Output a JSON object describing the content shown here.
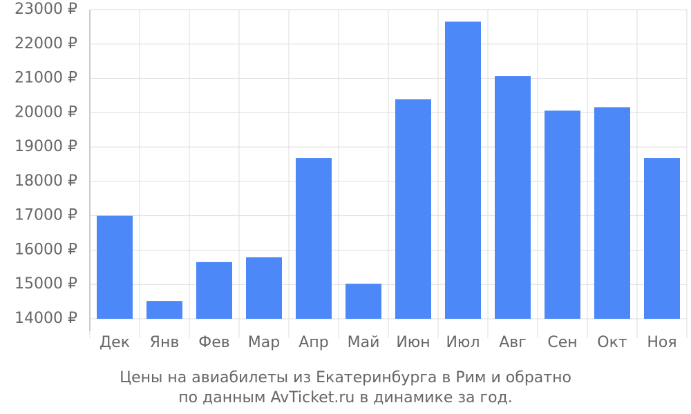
{
  "chart_data": {
    "type": "bar",
    "title": "Цены на авиабилеты из Екатеринбурга в Рим и обратно",
    "subtitle": "по данным AvTicket.ru в динамике за год.",
    "categories": [
      "Дек",
      "Янв",
      "Фев",
      "Мар",
      "Апр",
      "Май",
      "Июн",
      "Июл",
      "Авг",
      "Сен",
      "Окт",
      "Ноя"
    ],
    "values": [
      17000,
      14520,
      15650,
      15790,
      18680,
      15020,
      20390,
      22650,
      21070,
      20060,
      20160,
      18680
    ],
    "color": "#4d88f8",
    "ylim": [
      14000,
      23000
    ],
    "yticks": [
      {
        "value": 14000,
        "label": "14000 ₽"
      },
      {
        "value": 15000,
        "label": "15000 ₽"
      },
      {
        "value": 16000,
        "label": "16000 ₽"
      },
      {
        "value": 17000,
        "label": "17000 ₽"
      },
      {
        "value": 18000,
        "label": "18000 ₽"
      },
      {
        "value": 19000,
        "label": "19000 ₽"
      },
      {
        "value": 20000,
        "label": "20000 ₽"
      },
      {
        "value": 21000,
        "label": "21000 ₽"
      },
      {
        "value": 22000,
        "label": "22000 ₽"
      },
      {
        "value": 23000,
        "label": "23000 ₽"
      }
    ],
    "grid": true
  }
}
